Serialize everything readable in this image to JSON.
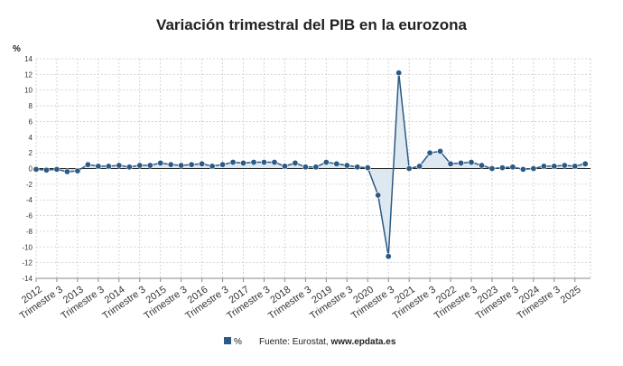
{
  "chart_data": {
    "type": "line",
    "title": "Variación trimestral del PIB en la eurozona",
    "ylabel": "%",
    "ylim": [
      -14,
      14
    ],
    "yticks": [
      -14,
      -12,
      -10,
      -8,
      -6,
      -4,
      -2,
      0,
      2,
      4,
      6,
      8,
      10,
      12,
      14
    ],
    "xlim": [
      2012.0,
      2025.375
    ],
    "xticks": [
      {
        "label": "2012",
        "pos": 2012.0
      },
      {
        "label": "Trimestre 3",
        "pos": 2012.5
      },
      {
        "label": "2013",
        "pos": 2013.0
      },
      {
        "label": "Trimestre 3",
        "pos": 2013.5
      },
      {
        "label": "2014",
        "pos": 2014.0
      },
      {
        "label": "Trimestre 3",
        "pos": 2014.5
      },
      {
        "label": "2015",
        "pos": 2015.0
      },
      {
        "label": "Trimestre 3",
        "pos": 2015.5
      },
      {
        "label": "2016",
        "pos": 2016.0
      },
      {
        "label": "Trimestre 3",
        "pos": 2016.5
      },
      {
        "label": "2017",
        "pos": 2017.0
      },
      {
        "label": "Trimestre 3",
        "pos": 2017.5
      },
      {
        "label": "2018",
        "pos": 2018.0
      },
      {
        "label": "Trimestre 3",
        "pos": 2018.5
      },
      {
        "label": "2019",
        "pos": 2019.0
      },
      {
        "label": "Trimestre 3",
        "pos": 2019.5
      },
      {
        "label": "2020",
        "pos": 2020.0
      },
      {
        "label": "Trimestre 3",
        "pos": 2020.5
      },
      {
        "label": "2021",
        "pos": 2021.0
      },
      {
        "label": "Trimestre 3",
        "pos": 2021.5
      },
      {
        "label": "2022",
        "pos": 2022.0
      },
      {
        "label": "Trimestre 3",
        "pos": 2022.5
      },
      {
        "label": "2023",
        "pos": 2023.0
      },
      {
        "label": "Trimestre 3",
        "pos": 2023.5
      },
      {
        "label": "2024",
        "pos": 2024.0
      },
      {
        "label": "Trimestre 3",
        "pos": 2024.5
      },
      {
        "label": "2025",
        "pos": 2025.0
      }
    ],
    "grid": true,
    "series": [
      {
        "name": "%",
        "color": "#2b5a86",
        "fill_color": "#dde8f0",
        "x": [
          2012.0,
          2012.25,
          2012.5,
          2012.75,
          2013.0,
          2013.25,
          2013.5,
          2013.75,
          2014.0,
          2014.25,
          2014.5,
          2014.75,
          2015.0,
          2015.25,
          2015.5,
          2015.75,
          2016.0,
          2016.25,
          2016.5,
          2016.75,
          2017.0,
          2017.25,
          2017.5,
          2017.75,
          2018.0,
          2018.25,
          2018.5,
          2018.75,
          2019.0,
          2019.25,
          2019.5,
          2019.75,
          2020.0,
          2020.25,
          2020.5,
          2020.75,
          2021.0,
          2021.25,
          2021.5,
          2021.75,
          2022.0,
          2022.25,
          2022.5,
          2022.75,
          2023.0,
          2023.25,
          2023.5,
          2023.75,
          2024.0,
          2024.25,
          2024.5,
          2024.75,
          2025.0,
          2025.25
        ],
        "values": [
          -0.1,
          -0.2,
          -0.1,
          -0.4,
          -0.3,
          0.5,
          0.3,
          0.3,
          0.4,
          0.2,
          0.4,
          0.4,
          0.7,
          0.5,
          0.4,
          0.5,
          0.6,
          0.3,
          0.5,
          0.8,
          0.7,
          0.8,
          0.8,
          0.8,
          0.3,
          0.7,
          0.2,
          0.2,
          0.8,
          0.6,
          0.4,
          0.2,
          0.1,
          -3.4,
          -11.2,
          12.2,
          0.0,
          0.3,
          2.0,
          2.2,
          0.6,
          0.7,
          0.8,
          0.4,
          0.0,
          0.1,
          0.2,
          -0.1,
          0.0,
          0.3,
          0.3,
          0.4,
          0.3,
          0.6
        ]
      }
    ],
    "legend": {
      "label": "%",
      "position": "bottom"
    },
    "source_prefix": "Fuente: Eurostat, ",
    "source_site": "www.epdata.es"
  }
}
